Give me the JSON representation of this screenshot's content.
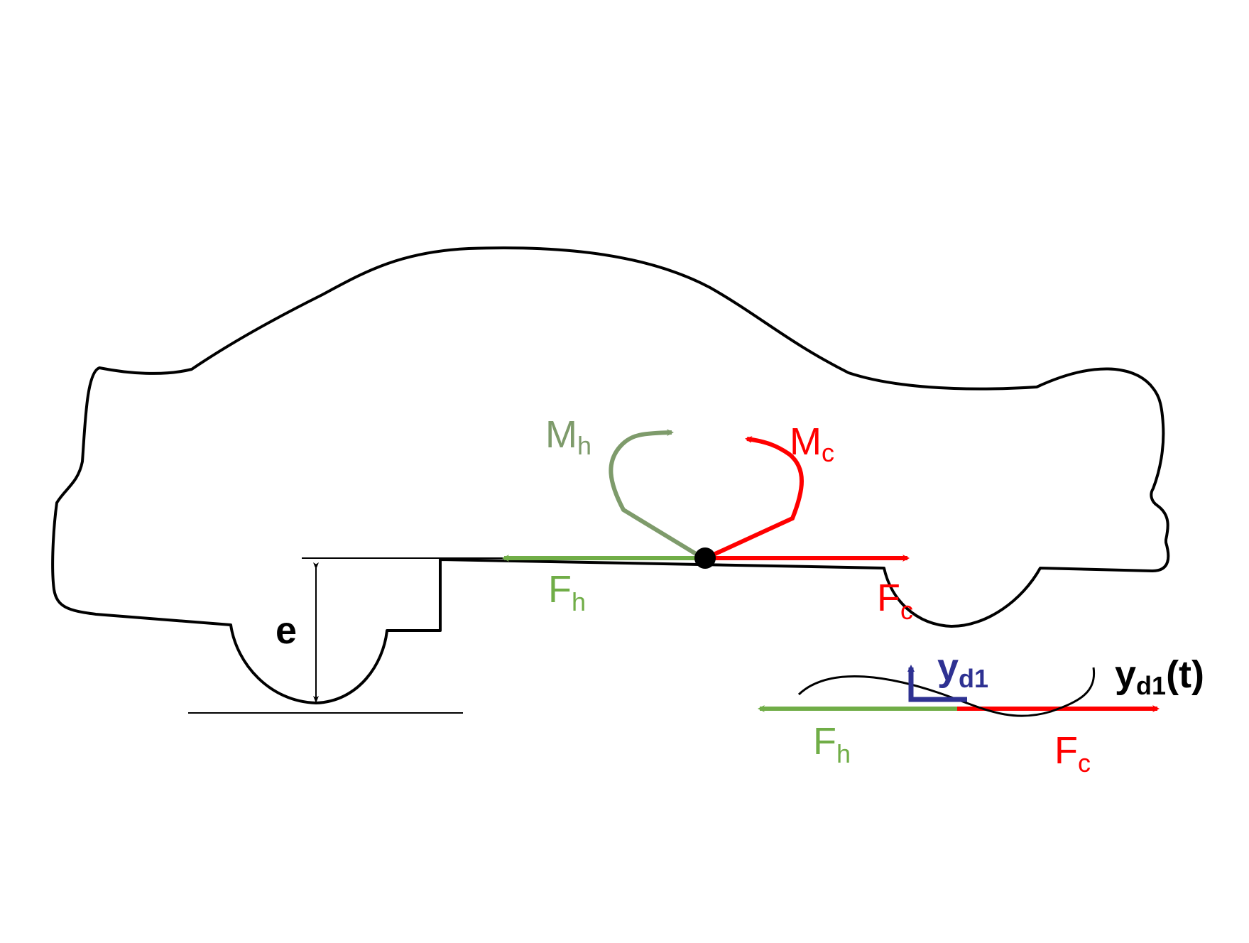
{
  "colors": {
    "outline": "#000000",
    "human": "#70ad47",
    "human_moment": "#7e9b6b",
    "controller": "#ff0000",
    "disturbance": "#2e3192",
    "dimension": "#000000"
  },
  "labels": {
    "moment_human": {
      "base": "M",
      "sub": "h"
    },
    "moment_controller": {
      "base": "M",
      "sub": "c"
    },
    "force_human_cg": {
      "base": "F",
      "sub": "h"
    },
    "force_controller_cg": {
      "base": "F",
      "sub": "c"
    },
    "force_human_contact": {
      "base": "F",
      "sub": "h"
    },
    "force_controller_contact": {
      "base": "F",
      "sub": "c"
    },
    "height_offset": "e",
    "disturbance_axis": {
      "base": "y",
      "sub": "d1"
    },
    "disturbance_signal": {
      "base": "y",
      "sub": "d1",
      "suffix": "(t)"
    }
  },
  "icons": {
    "vehicle": "car-outline-icon",
    "cg": "center-of-gravity-dot-icon"
  }
}
